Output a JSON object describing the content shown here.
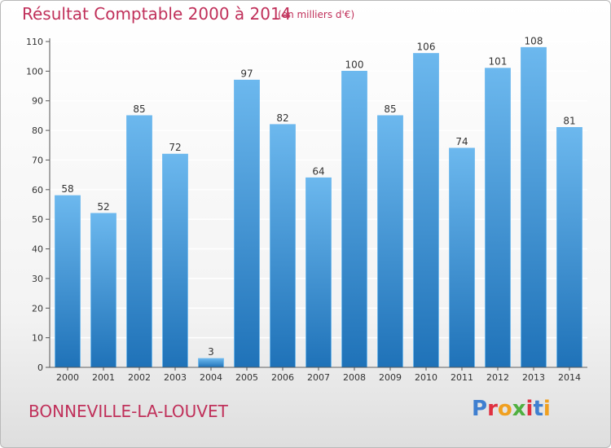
{
  "header": {
    "title": "Résultat Comptable 2000 à 2014",
    "unit": "(en milliers d'€)"
  },
  "footer": {
    "commune": "BONNEVILLE-LA-LOUVET",
    "logo": [
      "P",
      "r",
      "o",
      "x",
      "i",
      "t",
      "i"
    ],
    "logo_colors": [
      "#3f7fd0",
      "#e03040",
      "#f0a020",
      "#50b040",
      "#e03040",
      "#3f7fd0",
      "#f0a020"
    ]
  },
  "colors": {
    "title": "#c0305a",
    "bar": "#3a93dc",
    "bar_light": "#6cb8ee",
    "bar_dark": "#1f72b8",
    "axis": "#555555",
    "grid": "#ffffff"
  },
  "chart_data": {
    "type": "bar",
    "title": "Résultat Comptable 2000 à 2014",
    "xlabel": "",
    "ylabel": "",
    "categories": [
      "2000",
      "2001",
      "2002",
      "2003",
      "2004",
      "2005",
      "2006",
      "2007",
      "2008",
      "2009",
      "2010",
      "2011",
      "2012",
      "2013",
      "2014"
    ],
    "values": [
      58,
      52,
      85,
      72,
      3,
      97,
      82,
      64,
      100,
      85,
      106,
      74,
      101,
      108,
      81
    ],
    "ylim": [
      0,
      110
    ],
    "yticks": [
      0,
      10,
      20,
      30,
      40,
      50,
      60,
      70,
      80,
      90,
      100,
      110
    ],
    "grid": true,
    "legend": "none"
  }
}
